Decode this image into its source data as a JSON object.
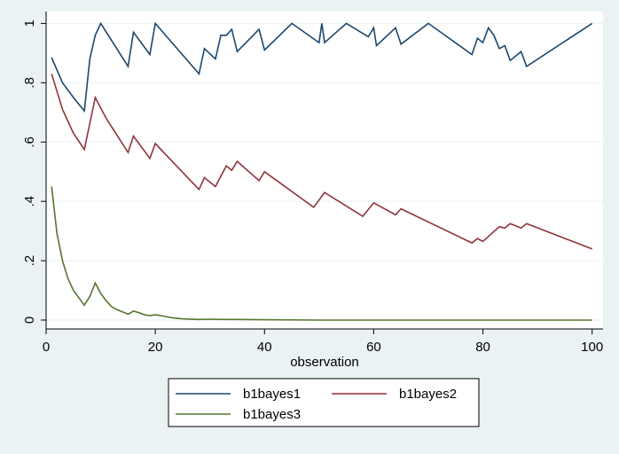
{
  "chart_data": {
    "type": "line",
    "xlabel": "observation",
    "ylabel": "",
    "xlim": [
      0,
      102
    ],
    "ylim": [
      -0.03,
      1.04
    ],
    "x_ticks": [
      0,
      20,
      40,
      60,
      80,
      100
    ],
    "x_tick_labels": [
      "0",
      "20",
      "40",
      "60",
      "80",
      "100"
    ],
    "y_ticks": [
      0,
      0.2,
      0.4,
      0.6,
      0.8,
      1
    ],
    "y_tick_labels": [
      "0",
      ".2",
      ".4",
      ".6",
      ".8",
      "1"
    ],
    "grid": true,
    "legend_position": "bottom",
    "series": [
      {
        "name": "b1bayes1",
        "color": "#1a476f",
        "points": [
          [
            1,
            0.885
          ],
          [
            3,
            0.8
          ],
          [
            5,
            0.75
          ],
          [
            7,
            0.705
          ],
          [
            8,
            0.88
          ],
          [
            9,
            0.96
          ],
          [
            10,
            1.0
          ],
          [
            15,
            0.855
          ],
          [
            16,
            0.97
          ],
          [
            19,
            0.895
          ],
          [
            20,
            1.0
          ],
          [
            28,
            0.83
          ],
          [
            29,
            0.915
          ],
          [
            31,
            0.88
          ],
          [
            32,
            0.96
          ],
          [
            33,
            0.96
          ],
          [
            34,
            0.98
          ],
          [
            35,
            0.905
          ],
          [
            39,
            0.98
          ],
          [
            40,
            0.91
          ],
          [
            45,
            1.0
          ],
          [
            50,
            0.935
          ],
          [
            50.5,
            1.0
          ],
          [
            51,
            0.935
          ],
          [
            55,
            1.0
          ],
          [
            59,
            0.955
          ],
          [
            60,
            0.985
          ],
          [
            60.5,
            0.925
          ],
          [
            64,
            0.985
          ],
          [
            65,
            0.93
          ],
          [
            70,
            1.0
          ],
          [
            78,
            0.895
          ],
          [
            79,
            0.95
          ],
          [
            80,
            0.935
          ],
          [
            81,
            0.985
          ],
          [
            82,
            0.96
          ],
          [
            83,
            0.915
          ],
          [
            84,
            0.925
          ],
          [
            85,
            0.875
          ],
          [
            87,
            0.905
          ],
          [
            88,
            0.855
          ],
          [
            100,
            1.0
          ]
        ]
      },
      {
        "name": "b1bayes2",
        "color": "#90353b",
        "points": [
          [
            1,
            0.83
          ],
          [
            3,
            0.71
          ],
          [
            5,
            0.63
          ],
          [
            7,
            0.575
          ],
          [
            9,
            0.75
          ],
          [
            11,
            0.68
          ],
          [
            15,
            0.565
          ],
          [
            16,
            0.62
          ],
          [
            19,
            0.545
          ],
          [
            20,
            0.595
          ],
          [
            28,
            0.44
          ],
          [
            29,
            0.48
          ],
          [
            31,
            0.45
          ],
          [
            33,
            0.52
          ],
          [
            34,
            0.505
          ],
          [
            35,
            0.535
          ],
          [
            39,
            0.47
          ],
          [
            40,
            0.5
          ],
          [
            49,
            0.38
          ],
          [
            51,
            0.43
          ],
          [
            58,
            0.35
          ],
          [
            60,
            0.395
          ],
          [
            64,
            0.355
          ],
          [
            65,
            0.375
          ],
          [
            78,
            0.26
          ],
          [
            79,
            0.275
          ],
          [
            80,
            0.265
          ],
          [
            83,
            0.315
          ],
          [
            84,
            0.31
          ],
          [
            85,
            0.325
          ],
          [
            87,
            0.31
          ],
          [
            88,
            0.325
          ],
          [
            100,
            0.24
          ]
        ]
      },
      {
        "name": "b1bayes3",
        "color": "#55752f",
        "points": [
          [
            1,
            0.45
          ],
          [
            2,
            0.29
          ],
          [
            3,
            0.2
          ],
          [
            4,
            0.14
          ],
          [
            5,
            0.1
          ],
          [
            7,
            0.05
          ],
          [
            8,
            0.08
          ],
          [
            9,
            0.125
          ],
          [
            10,
            0.09
          ],
          [
            11,
            0.065
          ],
          [
            12,
            0.045
          ],
          [
            13,
            0.035
          ],
          [
            15,
            0.02
          ],
          [
            16,
            0.03
          ],
          [
            17,
            0.025
          ],
          [
            18,
            0.018
          ],
          [
            19,
            0.015
          ],
          [
            20,
            0.018
          ],
          [
            21,
            0.015
          ],
          [
            23,
            0.008
          ],
          [
            25,
            0.004
          ],
          [
            28,
            0.002
          ],
          [
            30,
            0.003
          ],
          [
            33,
            0.002
          ],
          [
            35,
            0.002
          ],
          [
            40,
            0.001
          ],
          [
            50,
            0.0
          ],
          [
            70,
            0.0
          ],
          [
            100,
            0.0
          ]
        ]
      }
    ]
  }
}
